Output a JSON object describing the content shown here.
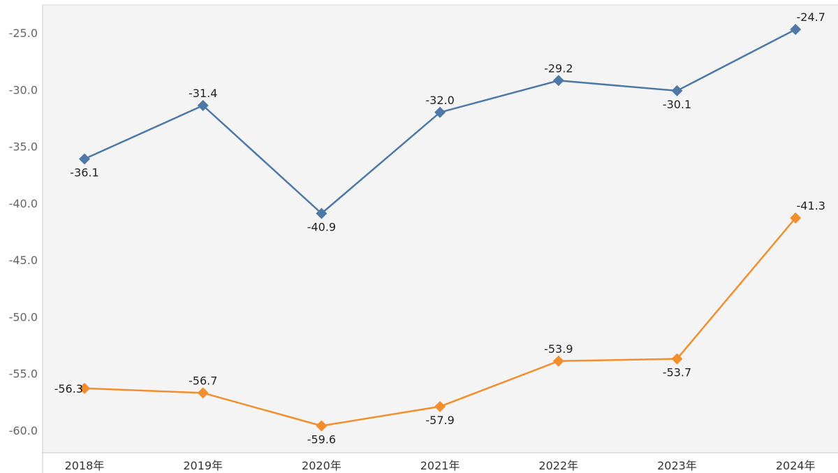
{
  "chart_data": {
    "type": "line",
    "title": "",
    "xlabel": "",
    "ylabel": "",
    "categories": [
      "2018年",
      "2019年",
      "2020年",
      "2021年",
      "2022年",
      "2023年",
      "2024年"
    ],
    "ylim": [
      -62.0,
      -23.0
    ],
    "yticks": [
      "-25.0",
      "-30.0",
      "-35.0",
      "-40.0",
      "-45.0",
      "-50.0",
      "-55.0",
      "-60.0"
    ],
    "grid": false,
    "legend": "none",
    "series": [
      {
        "color": "#4e79a7",
        "values": [
          -36.1,
          -31.4,
          -40.9,
          -32.0,
          -29.2,
          -30.1,
          -24.7
        ],
        "labels": [
          "-36.1",
          "-31.4",
          "-40.9",
          "-32.0",
          "-29.2",
          "-30.1",
          "-24.7"
        ],
        "label_position": [
          "below",
          "above",
          "below",
          "above",
          "above",
          "below",
          "above"
        ]
      },
      {
        "color": "#f28e2b",
        "values": [
          -56.3,
          -56.7,
          -59.6,
          -57.9,
          -53.9,
          -53.7,
          -41.3
        ],
        "labels": [
          "-56.3",
          "-56.7",
          "-59.6",
          "-57.9",
          "-53.9",
          "-53.7",
          "-41.3"
        ],
        "label_position": [
          "left",
          "above",
          "below",
          "below",
          "above",
          "below",
          "above"
        ]
      }
    ],
    "plot_background": "#f4f4f4"
  }
}
